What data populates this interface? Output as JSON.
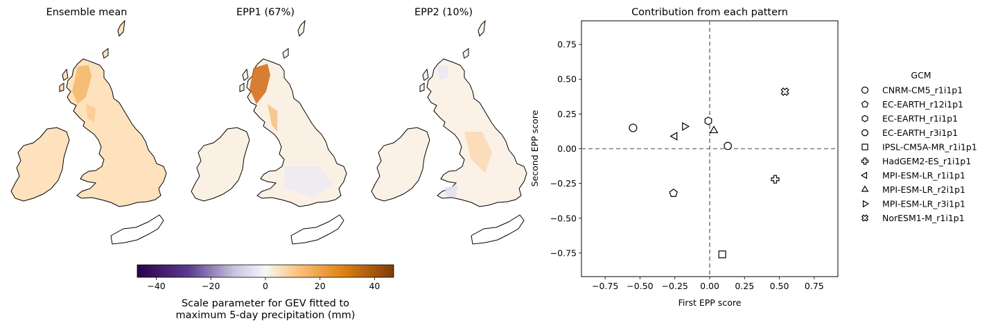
{
  "maps": {
    "panels": [
      {
        "title": "Ensemble mean"
      },
      {
        "title": "EPP1 (67%)"
      },
      {
        "title": "EPP2 (10%)"
      }
    ],
    "colorbar": {
      "ticks": [
        "−40",
        "−20",
        "0",
        "20",
        "40"
      ],
      "tick_values": [
        -40,
        -20,
        0,
        20,
        40
      ],
      "range": [
        -47,
        47
      ],
      "label_line1": "Scale parameter for GEV fitted to",
      "label_line2": "maximum 5-day precipitation (mm)",
      "colors": [
        "#2d004b",
        "#f7f7f7",
        "#7f3b08"
      ]
    }
  },
  "chart_data": {
    "type": "scatter",
    "title": "Contribution from each pattern",
    "xlabel": "First EPP score",
    "ylabel": "Second EPP score",
    "xlim": [
      -0.92,
      0.92
    ],
    "ylim": [
      -0.92,
      0.92
    ],
    "xticks": [
      "−0.75",
      "−0.50",
      "−0.25",
      "0.00",
      "0.25",
      "0.50",
      "0.75"
    ],
    "yticks": [
      "0.75",
      "0.50",
      "0.25",
      "0.00",
      "−0.25",
      "−0.50",
      "−0.75"
    ],
    "xtick_values": [
      -0.75,
      -0.5,
      -0.25,
      0,
      0.25,
      0.5,
      0.75
    ],
    "ytick_values": [
      0.75,
      0.5,
      0.25,
      0,
      -0.25,
      -0.5,
      -0.75
    ],
    "reference_lines": {
      "x": 0,
      "y": 0,
      "style": "dashed",
      "color": "#808080"
    },
    "grid": false,
    "legend": {
      "title": "GCM",
      "placement": "outside right",
      "entries": [
        {
          "name": "CNRM-CM5_r1i1p1",
          "marker": "circle"
        },
        {
          "name": "EC-EARTH_r12i1p1",
          "marker": "pentagon"
        },
        {
          "name": "EC-EARTH_r1i1p1",
          "marker": "hexagon"
        },
        {
          "name": "EC-EARTH_r3i1p1",
          "marker": "octagon"
        },
        {
          "name": "IPSL-CM5A-MR_r1i1p1",
          "marker": "square"
        },
        {
          "name": "HadGEM2-ES_r1i1p1",
          "marker": "plus"
        },
        {
          "name": "MPI-ESM-LR_r1i1p1",
          "marker": "triangle-left"
        },
        {
          "name": "MPI-ESM-LR_r2i1p1",
          "marker": "triangle-up"
        },
        {
          "name": "MPI-ESM-LR_r3i1p1",
          "marker": "triangle-right"
        },
        {
          "name": "NorESM1-M_r1i1p1",
          "marker": "x-filled"
        }
      ]
    },
    "points": [
      {
        "gcm": "CNRM-CM5_r1i1p1",
        "x": -0.55,
        "y": 0.15
      },
      {
        "gcm": "EC-EARTH_r12i1p1",
        "x": -0.26,
        "y": -0.32
      },
      {
        "gcm": "EC-EARTH_r1i1p1",
        "x": -0.01,
        "y": 0.2
      },
      {
        "gcm": "EC-EARTH_r3i1p1",
        "x": 0.13,
        "y": 0.02
      },
      {
        "gcm": "IPSL-CM5A-MR_r1i1p1",
        "x": 0.09,
        "y": -0.76
      },
      {
        "gcm": "HadGEM2-ES_r1i1p1",
        "x": 0.47,
        "y": -0.22
      },
      {
        "gcm": "MPI-ESM-LR_r1i1p1",
        "x": -0.25,
        "y": 0.09
      },
      {
        "gcm": "MPI-ESM-LR_r2i1p1",
        "x": 0.03,
        "y": 0.13
      },
      {
        "gcm": "MPI-ESM-LR_r3i1p1",
        "x": -0.18,
        "y": 0.16
      },
      {
        "gcm": "NorESM1-M_r1i1p1",
        "x": 0.54,
        "y": 0.41
      }
    ]
  }
}
